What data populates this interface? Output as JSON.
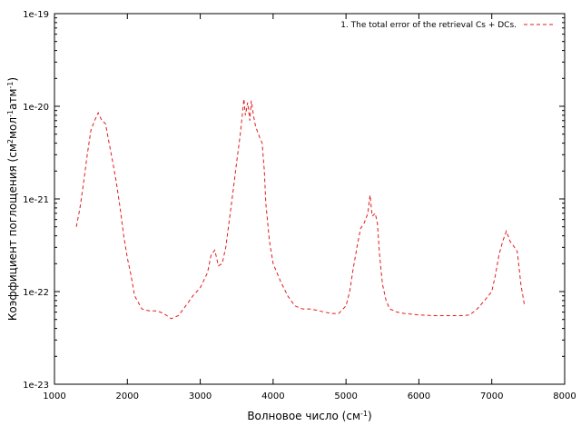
{
  "chart_data": {
    "type": "line",
    "xlabel": "Волновое число (см",
    "xlabel_sup": "-1",
    "xlabel_end": ")",
    "ylabel_parts": [
      "Коэффициент поглощения (см",
      "2",
      "мол",
      "-1",
      "атм",
      "-1",
      ")"
    ],
    "x_ticks": [
      1000,
      2000,
      3000,
      4000,
      5000,
      6000,
      7000,
      8000
    ],
    "y_ticks": [
      {
        "value": 1e-19,
        "label": "1e-19"
      },
      {
        "value": 1e-20,
        "label": "1e-20"
      },
      {
        "value": 1e-21,
        "label": "1e-21"
      },
      {
        "value": 1e-22,
        "label": "1e-22"
      },
      {
        "value": 1e-23,
        "label": "1e-23"
      }
    ],
    "xlim": [
      1000,
      8000
    ],
    "ylim": [
      1e-23,
      1e-19
    ],
    "y_scale": "log",
    "grid": false,
    "legend_position": "top-right",
    "series": [
      {
        "name": "1. The total error of the retrieval Cs + DCs.",
        "color": "#e41a1c",
        "style": "dashed",
        "points": [
          [
            1300,
            5e-22
          ],
          [
            1350,
            8e-22
          ],
          [
            1400,
            1.5e-21
          ],
          [
            1450,
            3e-21
          ],
          [
            1500,
            5.5e-21
          ],
          [
            1550,
            7e-21
          ],
          [
            1600,
            8.5e-21
          ],
          [
            1650,
            7e-21
          ],
          [
            1700,
            6.5e-21
          ],
          [
            1750,
            4e-21
          ],
          [
            1800,
            2.5e-21
          ],
          [
            1850,
            1.5e-21
          ],
          [
            1900,
            8e-22
          ],
          [
            1950,
            4e-22
          ],
          [
            2000,
            2.3e-22
          ],
          [
            2050,
            1.5e-22
          ],
          [
            2100,
            9e-23
          ],
          [
            2200,
            6.5e-23
          ],
          [
            2300,
            6.2e-23
          ],
          [
            2400,
            6.2e-23
          ],
          [
            2500,
            5.8e-23
          ],
          [
            2600,
            5.1e-23
          ],
          [
            2700,
            5.5e-23
          ],
          [
            2800,
            7e-23
          ],
          [
            2900,
            9e-23
          ],
          [
            3000,
            1.1e-22
          ],
          [
            3100,
            1.6e-22
          ],
          [
            3150,
            2.5e-22
          ],
          [
            3200,
            2.8e-22
          ],
          [
            3250,
            1.9e-22
          ],
          [
            3300,
            2e-22
          ],
          [
            3350,
            3e-22
          ],
          [
            3400,
            6e-22
          ],
          [
            3450,
            1.2e-21
          ],
          [
            3500,
            2.5e-21
          ],
          [
            3550,
            5e-21
          ],
          [
            3600,
            1.2e-20
          ],
          [
            3620,
            8e-21
          ],
          [
            3650,
            1.1e-20
          ],
          [
            3680,
            7e-21
          ],
          [
            3700,
            1.15e-20
          ],
          [
            3730,
            8e-21
          ],
          [
            3760,
            6e-21
          ],
          [
            3800,
            5e-21
          ],
          [
            3820,
            4.5e-21
          ],
          [
            3850,
            4e-21
          ],
          [
            3880,
            2e-21
          ],
          [
            3900,
            9e-22
          ],
          [
            3950,
            3.5e-22
          ],
          [
            4000,
            2e-22
          ],
          [
            4100,
            1.3e-22
          ],
          [
            4200,
            9e-23
          ],
          [
            4300,
            7e-23
          ],
          [
            4400,
            6.5e-23
          ],
          [
            4500,
            6.5e-23
          ],
          [
            4600,
            6.3e-23
          ],
          [
            4700,
            6e-23
          ],
          [
            4800,
            5.8e-23
          ],
          [
            4900,
            5.8e-23
          ],
          [
            5000,
            7e-23
          ],
          [
            5050,
            1e-22
          ],
          [
            5100,
            1.8e-22
          ],
          [
            5150,
            3e-22
          ],
          [
            5200,
            4.8e-22
          ],
          [
            5250,
            5.5e-22
          ],
          [
            5300,
            7e-22
          ],
          [
            5330,
            1.1e-21
          ],
          [
            5360,
            6.5e-22
          ],
          [
            5400,
            7e-22
          ],
          [
            5430,
            5.5e-22
          ],
          [
            5460,
            2.5e-22
          ],
          [
            5500,
            1.2e-22
          ],
          [
            5550,
            8e-23
          ],
          [
            5600,
            6.5e-23
          ],
          [
            5700,
            6e-23
          ],
          [
            5800,
            5.8e-23
          ],
          [
            5900,
            5.7e-23
          ],
          [
            6000,
            5.6e-23
          ],
          [
            6200,
            5.5e-23
          ],
          [
            6400,
            5.5e-23
          ],
          [
            6600,
            5.5e-23
          ],
          [
            6700,
            5.6e-23
          ],
          [
            6800,
            6.5e-23
          ],
          [
            6900,
            8e-23
          ],
          [
            7000,
            1e-22
          ],
          [
            7050,
            1.5e-22
          ],
          [
            7100,
            2.5e-22
          ],
          [
            7150,
            3.5e-22
          ],
          [
            7200,
            4.5e-22
          ],
          [
            7250,
            3.5e-22
          ],
          [
            7300,
            3.1e-22
          ],
          [
            7350,
            2.7e-22
          ],
          [
            7400,
            1.2e-22
          ],
          [
            7450,
            7e-23
          ]
        ]
      }
    ]
  }
}
